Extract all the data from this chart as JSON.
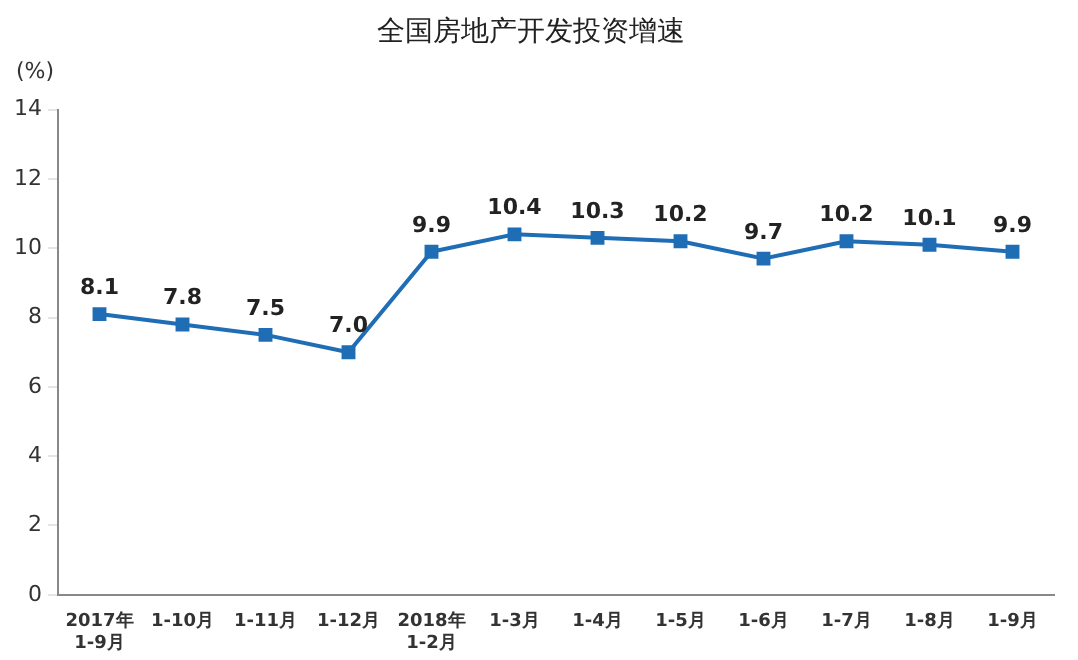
{
  "chart_data": {
    "type": "line",
    "title": "全国房地产开发投资增速",
    "ylabel": "(%)",
    "categories": [
      "2017年\n1-9月",
      "1-10月",
      "1-11月",
      "1-12月",
      "2018年\n1-2月",
      "1-3月",
      "1-4月",
      "1-5月",
      "1-6月",
      "1-7月",
      "1-8月",
      "1-9月"
    ],
    "series": [
      {
        "color": "#1f6db5",
        "values": [
          8.1,
          7.8,
          7.5,
          7.0,
          9.9,
          10.4,
          10.3,
          10.2,
          9.7,
          10.2,
          10.1,
          9.9
        ]
      }
    ],
    "ylim": [
      0,
      14
    ],
    "yticks": [
      0,
      2,
      4,
      6,
      8,
      10,
      12,
      14
    ],
    "grid": false,
    "legend": false,
    "marker": "square",
    "line_style": "solid",
    "value_labels": [
      "8.1",
      "7.8",
      "7.5",
      "7.0",
      "9.9",
      "10.4",
      "10.3",
      "10.2",
      "9.7",
      "10.2",
      "10.1",
      "9.9"
    ]
  }
}
